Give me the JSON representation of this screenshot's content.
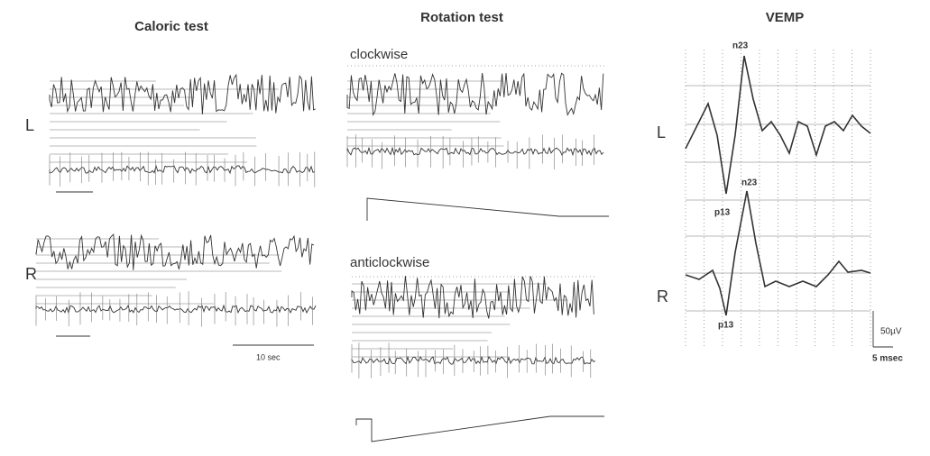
{
  "panels": [
    {
      "title": "Caloric test",
      "labels": [
        "L",
        "R"
      ],
      "time_scale": "10 sec"
    },
    {
      "title": "Rotation test",
      "subtitles": [
        "clockwise",
        "anticlockwise"
      ]
    },
    {
      "title": "VEMP",
      "labels": [
        "L",
        "R"
      ],
      "peaks": [
        "n23",
        "p13",
        "n23",
        "p13"
      ],
      "amplitude_scale": "50µV",
      "time_scale": "5 msec"
    }
  ]
}
